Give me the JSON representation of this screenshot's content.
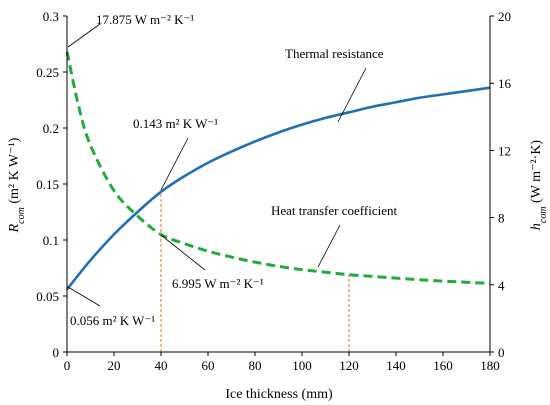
{
  "chart_data": {
    "type": "line",
    "xlabel": "Ice thickness (mm)",
    "ylabel_left": {
      "var": "R",
      "sub": "com",
      "units": " (m² K W⁻¹)"
    },
    "ylabel_right": {
      "var": "h",
      "sub": "com",
      "units": " (W m⁻²·K)"
    },
    "xlim": [
      0,
      180
    ],
    "ylim_left": [
      0,
      0.3
    ],
    "ylim_right": [
      0,
      20
    ],
    "x_ticks": [
      "0",
      "20",
      "40",
      "60",
      "80",
      "100",
      "120",
      "140",
      "160",
      "180"
    ],
    "y_left_ticks": [
      "0",
      "0.05",
      "0.1",
      "0.15",
      "0.2",
      "0.25",
      "0.3"
    ],
    "y_right_ticks": [
      "0",
      "4",
      "8",
      "12",
      "16",
      "20"
    ],
    "grid": false,
    "series": [
      {
        "name": "Thermal resistance",
        "axis": "left",
        "color": "#1f6fb7",
        "style": "solid",
        "x": [
          0,
          10,
          20,
          30,
          40,
          50,
          60,
          70,
          80,
          90,
          100,
          110,
          120,
          130,
          140,
          150,
          160,
          170,
          180
        ],
        "values": [
          0.056,
          0.082,
          0.105,
          0.125,
          0.143,
          0.157,
          0.169,
          0.179,
          0.188,
          0.196,
          0.203,
          0.209,
          0.214,
          0.219,
          0.223,
          0.227,
          0.23,
          0.233,
          0.236
        ]
      },
      {
        "name": "Heat transfer coefficient",
        "axis": "right",
        "color": "#22aa3a",
        "style": "dashed",
        "x": [
          0,
          5,
          10,
          20,
          30,
          40,
          50,
          60,
          70,
          80,
          90,
          100,
          110,
          120,
          130,
          140,
          150,
          160,
          170,
          180
        ],
        "values": [
          17.875,
          14.6,
          12.3,
          9.6,
          8.1,
          6.995,
          6.45,
          6.0,
          5.65,
          5.35,
          5.1,
          4.9,
          4.75,
          4.6,
          4.5,
          4.4,
          4.3,
          4.22,
          4.15,
          4.08
        ]
      }
    ],
    "guides": [
      {
        "x": 40,
        "axis": "left",
        "y": 0.143,
        "color": "#e07b1e"
      },
      {
        "x": 120,
        "axis": "right",
        "y": 4.6,
        "color": "#e07b1e"
      }
    ],
    "annotations": [
      {
        "text": "17.875 W m⁻² K⁻¹"
      },
      {
        "text": "0.143 m² K W⁻¹"
      },
      {
        "text": "6.995 W m⁻² K⁻¹"
      },
      {
        "text": "0.056 m² K W⁻¹"
      },
      {
        "text": "Thermal resistance"
      },
      {
        "text": "Heat transfer coefficient"
      }
    ]
  }
}
